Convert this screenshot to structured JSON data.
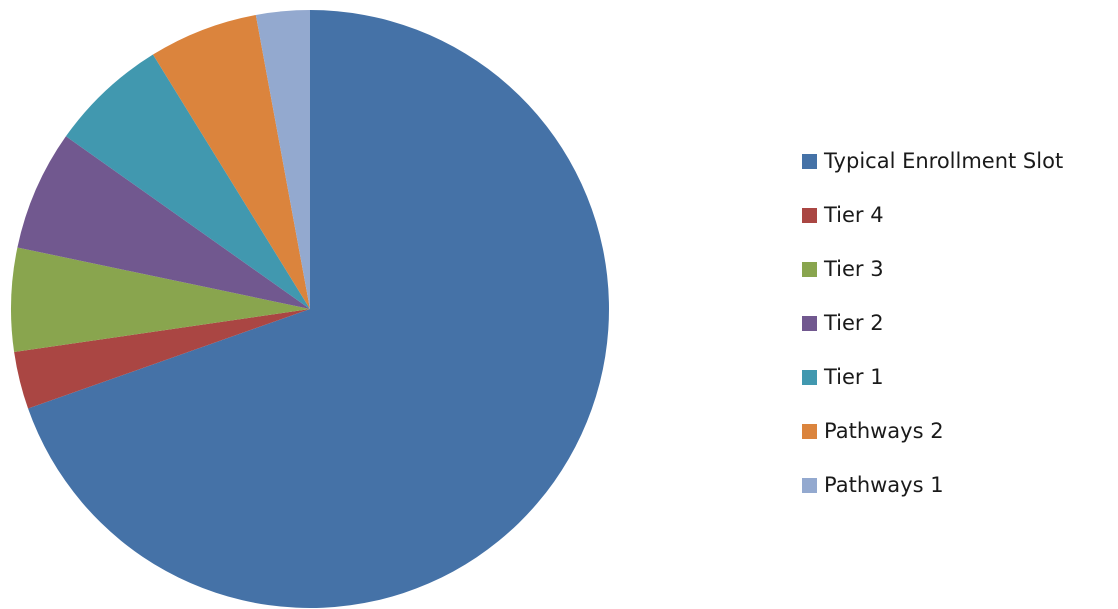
{
  "chart_data": {
    "type": "pie",
    "title": "",
    "legend_position": "right",
    "series": [
      {
        "categories": [
          "Typical Enrollment Slot",
          "Tier 4",
          "Tier 3",
          "Tier 2",
          "Tier 1",
          "Pathways 2",
          "Pathways 1"
        ],
        "values": [
          69.6,
          3.1,
          5.6,
          6.5,
          6.4,
          5.9,
          2.9
        ],
        "colors": [
          "#4572a7",
          "#aa4643",
          "#89a54e",
          "#71588f",
          "#4198af",
          "#db843d",
          "#93a9cf"
        ]
      }
    ]
  }
}
